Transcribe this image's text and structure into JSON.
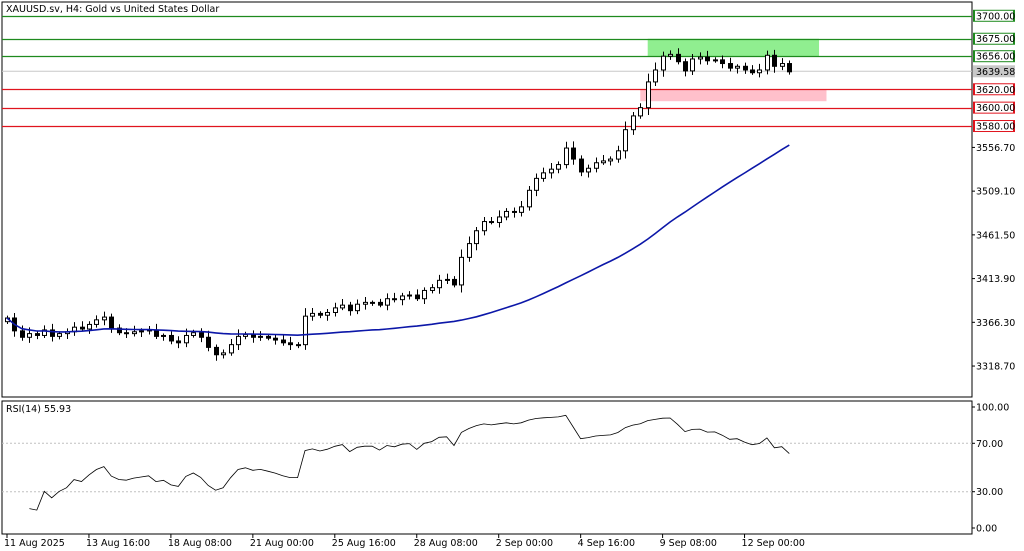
{
  "chart_data": {
    "type": "candlestick",
    "title": "XAUUSD.sv, H4:  Gold vs United States Dollar",
    "price_axis": {
      "ylim": [
        3285,
        3715
      ],
      "tick_labels": [
        "3556.70",
        "3509.10",
        "3461.50",
        "3413.90",
        "3366.30",
        "3318.70"
      ],
      "ticks": [
        3556.7,
        3509.1,
        3461.5,
        3413.9,
        3366.3,
        3318.7
      ]
    },
    "current_price": {
      "value": 3639.58,
      "label": "3639.58"
    },
    "levels": [
      {
        "value": 3700,
        "label": "3700.00",
        "color": "#1e8a1e"
      },
      {
        "value": 3675,
        "label": "3675.00",
        "color": "#1e8a1e"
      },
      {
        "value": 3656,
        "label": "3656.00",
        "color": "#1e8a1e"
      },
      {
        "value": 3620,
        "label": "3620.00",
        "color": "#e0141e"
      },
      {
        "value": 3600,
        "label": "3600.00",
        "color": "#e0141e"
      },
      {
        "value": 3580,
        "label": "3580.00",
        "color": "#e0141e"
      }
    ],
    "zones": [
      {
        "from_index": 86,
        "to_index": 109,
        "low": 3656,
        "high": 3675,
        "color": "#90ee90"
      },
      {
        "from_index": 85,
        "to_index": 110,
        "low": 3607,
        "high": 3620,
        "color": "#ffc0cb"
      }
    ],
    "moving_average": {
      "period": 50,
      "color": "#0c17a8"
    },
    "rsi": {
      "label": "RSI(14) 55.93",
      "period": 14,
      "ylim": [
        0,
        100
      ],
      "tick_labels": [
        "100.00",
        "70.00",
        "30.00",
        "0.00"
      ],
      "ticks": [
        100,
        70,
        30,
        0
      ],
      "levels": [
        70,
        30
      ]
    },
    "x_labels": [
      {
        "index": 0,
        "label": "11 Aug 2025"
      },
      {
        "index": 11,
        "label": "13 Aug 16:00"
      },
      {
        "index": 22,
        "label": "18 Aug 08:00"
      },
      {
        "index": 33,
        "label": "21 Aug 00:00"
      },
      {
        "index": 44,
        "label": "25 Aug 16:00"
      },
      {
        "index": 55,
        "label": "28 Aug 08:00"
      },
      {
        "index": 66,
        "label": "2 Sep 00:00"
      },
      {
        "index": 77,
        "label": "4 Sep 16:00"
      },
      {
        "index": 88,
        "label": "9 Sep 08:00"
      },
      {
        "index": 99,
        "label": "12 Sep 00:00"
      }
    ],
    "closes": [
      3371,
      3357,
      3350,
      3354,
      3352,
      3358,
      3351,
      3354,
      3356,
      3361,
      3359,
      3364,
      3369,
      3372,
      3360,
      3355,
      3354,
      3356,
      3357,
      3358,
      3351,
      3352,
      3346,
      3344,
      3352,
      3355,
      3350,
      3339,
      3331,
      3333,
      3342,
      3351,
      3353,
      3350,
      3351,
      3349,
      3347,
      3344,
      3342,
      3342,
      3373,
      3376,
      3374,
      3377,
      3382,
      3385,
      3379,
      3386,
      3388,
      3388,
      3385,
      3392,
      3391,
      3395,
      3396,
      3392,
      3401,
      3404,
      3412,
      3413,
      3407,
      3437,
      3452,
      3466,
      3476,
      3475,
      3481,
      3487,
      3486,
      3492,
      3510,
      3523,
      3529,
      3533,
      3538,
      3556,
      3544,
      3530,
      3534,
      3540,
      3542,
      3544,
      3553,
      3576,
      3591,
      3600,
      3628,
      3641,
      3656,
      3658,
      3650,
      3640,
      3653,
      3655,
      3651,
      3652,
      3648,
      3643,
      3645,
      3641,
      3638,
      3641,
      3657,
      3645,
      3648,
      3639
    ]
  }
}
